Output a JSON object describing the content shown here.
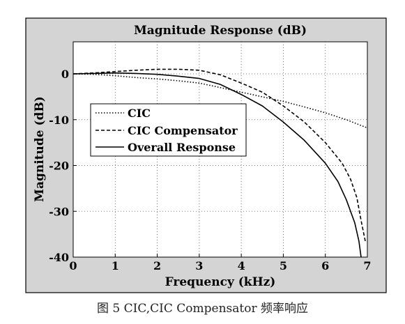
{
  "caption": "图 5   CIC,CIC Compensator 频率响应",
  "chart_data": {
    "type": "line",
    "title": "Magnitude Response (dB)",
    "xlabel": "Frequency (kHz)",
    "ylabel": "Magnitude (dB)",
    "xlim": [
      0,
      7
    ],
    "ylim": [
      -40,
      7
    ],
    "x_ticks": [
      0,
      1,
      2,
      3,
      4,
      5,
      6,
      7
    ],
    "y_ticks": [
      0,
      -10,
      -20,
      -30,
      -40
    ],
    "grid": true,
    "legend_position": "middle-left",
    "series": [
      {
        "name": "CIC",
        "style": "dotted",
        "color": "#000000",
        "x": [
          0,
          0.5,
          1,
          1.5,
          2,
          2.5,
          3,
          3.5,
          4,
          4.5,
          5,
          5.5,
          6,
          6.5,
          7
        ],
        "y": [
          0,
          -0.1,
          -0.4,
          -0.8,
          -1.1,
          -1.5,
          -2.0,
          -3.0,
          -4.0,
          -5.0,
          -6.0,
          -7.2,
          -8.5,
          -10.0,
          -11.8
        ]
      },
      {
        "name": "CIC Compensator",
        "style": "dashed",
        "color": "#000000",
        "x": [
          0,
          0.5,
          1,
          1.5,
          2,
          2.5,
          3,
          3.5,
          4,
          4.5,
          5,
          5.5,
          6,
          6.4,
          6.6,
          6.75,
          6.85,
          6.95
        ],
        "y": [
          0,
          0.2,
          0.5,
          0.8,
          1.0,
          1.0,
          0.8,
          -0.2,
          -2.0,
          -4.0,
          -7.0,
          -10.5,
          -15.0,
          -19.5,
          -23.0,
          -27.0,
          -32.0,
          -36.5
        ]
      },
      {
        "name": "Overall Response",
        "style": "solid",
        "color": "#000000",
        "x": [
          0,
          0.5,
          1,
          1.5,
          2,
          2.5,
          3,
          3.5,
          4,
          4.5,
          5,
          5.5,
          6,
          6.3,
          6.5,
          6.7,
          6.8,
          6.85
        ],
        "y": [
          0,
          0.1,
          0.2,
          0.1,
          -0.1,
          -0.5,
          -1.0,
          -2.3,
          -4.5,
          -7.0,
          -10.5,
          -14.5,
          -19.5,
          -23.5,
          -27.5,
          -32.5,
          -36.5,
          -40.0
        ]
      }
    ]
  }
}
